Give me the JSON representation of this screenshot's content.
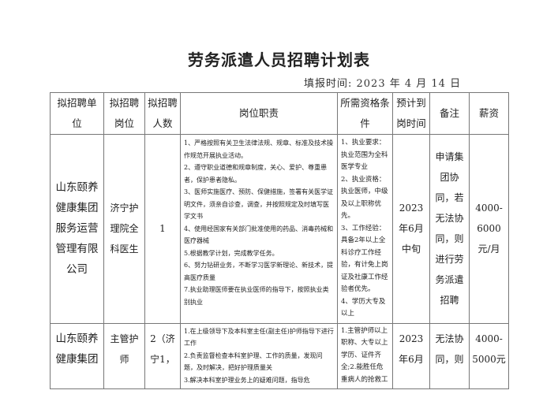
{
  "document": {
    "title": "劳务派遣人员招聘计划表",
    "fill_date": "填报时间: 2023 年 4 月  14  日"
  },
  "table": {
    "headers": [
      "拟招聘单位",
      "拟招聘岗位",
      "拟招聘人数",
      "岗位职责",
      "所需资格条件",
      "预计到岗时间",
      "备注",
      "薪资"
    ],
    "rows": [
      {
        "unit": "山东颐养健康集团服务运营管理有限公司",
        "position": "济宁护理院全科医生",
        "count": "1",
        "duties": "1、严格按照有关卫生法律法规、规章、标准及技术操作规范开展执业活动。\n2、遵守职业道德和规章制度，关心、爱护、尊重患者，保护患者隐私。\n3、医师实施医疗、预防、保健措施，签署有关医学证明文件，须亲自诊查，调查，并按照规定及时填写医学文书\n4、使用经国家有关部门批准使用的药品、消毒药械和医疗器械\n5.根据教学计划，完成教学任务。\n6、努力钻研业务，不断学习医学新理论、新技术，提高医疗质量\n7.执业助理医师要在执业医师的指导下，按照执业类别执业",
        "qualifications": "1、执业要求：执业范围为全科医学专业\n2、执业资格：执业医师，中级及以上职称优先。\n3、工作经验：具备2年以上全科诊疗工作经验，有计免上岗证及社康工作经验者优先。\n4、学历大专及以上",
        "arrival": "2023年6月中旬",
        "remark": "申请集团协同，若无法协同，则进行劳务派遣招聘",
        "salary": "4000-6000元/月"
      },
      {
        "unit": "山东颐养健康集团",
        "position": "主管护师",
        "count": "2（济宁1，",
        "duties": "1.在上级领导下及本科室主任(副主任)护师指导下进行工作\n2.负责监督检查本科室护理、工作的质量，发现问题，及时解决，把好护理质量关\n3.解决本科室护理业务上的疑难问题，指导危",
        "qualifications": "1.主管护师以上职称、大专以上学历、证件齐全;2.能胜任危重病人的抢救工",
        "arrival": "2023年6月",
        "remark": "无法协同，则",
        "salary": "4000-5000元"
      }
    ]
  }
}
